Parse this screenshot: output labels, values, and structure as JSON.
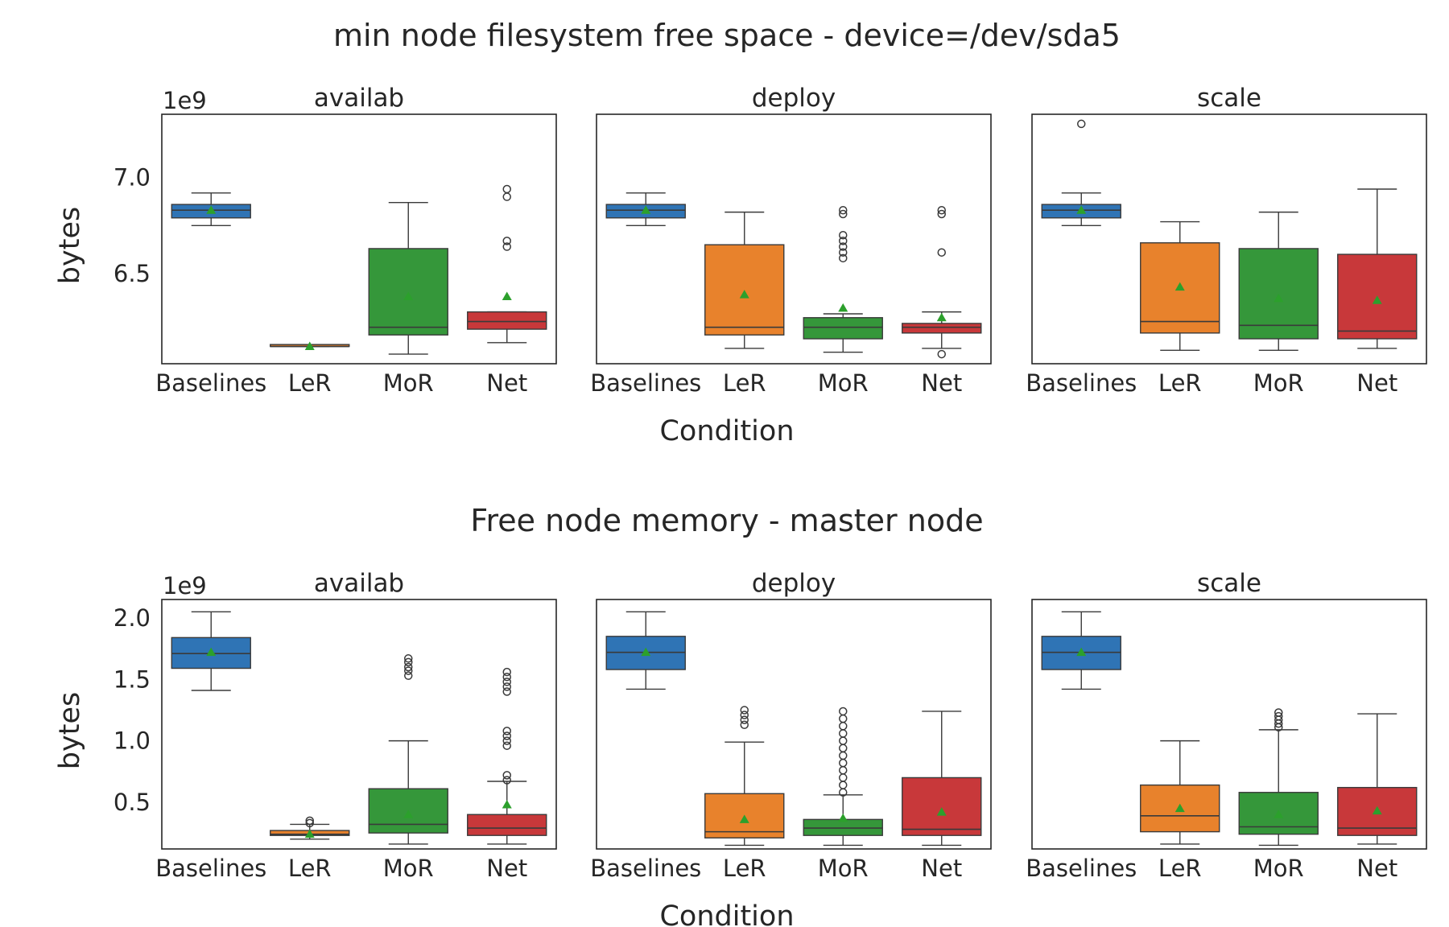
{
  "colors": {
    "Baselines": "#2f74b5",
    "LeR": "#e8822c",
    "MoR": "#35973a",
    "Net": "#c8383a",
    "mean": "#2ca02c"
  },
  "chart_data": [
    {
      "type": "box",
      "title": "min node filesystem free space - device=/dev/sda5",
      "xlabel": "Condition",
      "ylabel": "bytes",
      "offset_label": "1e9",
      "ylim": [
        6.03,
        7.33
      ],
      "yticks": [
        6.5,
        7.0
      ],
      "ytick_labels": [
        "6.5",
        "7.0"
      ],
      "categories": [
        "Baselines",
        "LeR",
        "MoR",
        "Net"
      ],
      "panels": [
        {
          "title": "availab",
          "boxes": [
            {
              "category": "Baselines",
              "whislo": 6.75,
              "q1": 6.79,
              "med": 6.83,
              "q3": 6.86,
              "whishi": 6.92,
              "mean": 6.83,
              "fliers": []
            },
            {
              "category": "LeR",
              "whislo": 6.12,
              "q1": 6.12,
              "med": 6.12,
              "q3": 6.13,
              "whishi": 6.13,
              "mean": 6.12,
              "fliers": []
            },
            {
              "category": "MoR",
              "whislo": 6.08,
              "q1": 6.18,
              "med": 6.22,
              "q3": 6.63,
              "whishi": 6.87,
              "mean": 6.38,
              "fliers": []
            },
            {
              "category": "Net",
              "whislo": 6.14,
              "q1": 6.21,
              "med": 6.25,
              "q3": 6.3,
              "whishi": 6.3,
              "mean": 6.38,
              "fliers": [
                6.64,
                6.67,
                6.9,
                6.94
              ]
            }
          ]
        },
        {
          "title": "deploy",
          "boxes": [
            {
              "category": "Baselines",
              "whislo": 6.75,
              "q1": 6.79,
              "med": 6.83,
              "q3": 6.86,
              "whishi": 6.92,
              "mean": 6.83,
              "fliers": []
            },
            {
              "category": "LeR",
              "whislo": 6.11,
              "q1": 6.18,
              "med": 6.22,
              "q3": 6.65,
              "whishi": 6.82,
              "mean": 6.39,
              "fliers": []
            },
            {
              "category": "MoR",
              "whislo": 6.09,
              "q1": 6.16,
              "med": 6.22,
              "q3": 6.27,
              "whishi": 6.29,
              "mean": 6.32,
              "fliers": [
                6.58,
                6.61,
                6.64,
                6.67,
                6.7,
                6.81,
                6.83
              ]
            },
            {
              "category": "Net",
              "whislo": 6.11,
              "q1": 6.19,
              "med": 6.22,
              "q3": 6.24,
              "whishi": 6.3,
              "mean": 6.27,
              "fliers": [
                6.08,
                6.61,
                6.81,
                6.83
              ]
            }
          ]
        },
        {
          "title": "scale",
          "boxes": [
            {
              "category": "Baselines",
              "whislo": 6.75,
              "q1": 6.79,
              "med": 6.83,
              "q3": 6.86,
              "whishi": 6.92,
              "mean": 6.83,
              "fliers": [
                7.28
              ]
            },
            {
              "category": "LeR",
              "whislo": 6.1,
              "q1": 6.19,
              "med": 6.25,
              "q3": 6.66,
              "whishi": 6.77,
              "mean": 6.43,
              "fliers": []
            },
            {
              "category": "MoR",
              "whislo": 6.1,
              "q1": 6.16,
              "med": 6.23,
              "q3": 6.63,
              "whishi": 6.82,
              "mean": 6.37,
              "fliers": []
            },
            {
              "category": "Net",
              "whislo": 6.11,
              "q1": 6.16,
              "med": 6.2,
              "q3": 6.6,
              "whishi": 6.94,
              "mean": 6.36,
              "fliers": []
            }
          ]
        }
      ]
    },
    {
      "type": "box",
      "title": "Free node memory - master node",
      "xlabel": "Condition",
      "ylabel": "bytes",
      "offset_label": "1e9",
      "ylim": [
        0.12,
        2.15
      ],
      "yticks": [
        0.5,
        1.0,
        1.5,
        2.0
      ],
      "ytick_labels": [
        "0.5",
        "1.0",
        "1.5",
        "2.0"
      ],
      "categories": [
        "Baselines",
        "LeR",
        "MoR",
        "Net"
      ],
      "panels": [
        {
          "title": "availab",
          "boxes": [
            {
              "category": "Baselines",
              "whislo": 1.41,
              "q1": 1.59,
              "med": 1.71,
              "q3": 1.84,
              "whishi": 2.05,
              "mean": 1.72,
              "fliers": []
            },
            {
              "category": "LeR",
              "whislo": 0.2,
              "q1": 0.23,
              "med": 0.24,
              "q3": 0.27,
              "whishi": 0.32,
              "mean": 0.24,
              "fliers": [
                0.33,
                0.35
              ]
            },
            {
              "category": "MoR",
              "whislo": 0.16,
              "q1": 0.25,
              "med": 0.32,
              "q3": 0.61,
              "whishi": 1.0,
              "mean": 0.4,
              "fliers": [
                1.53,
                1.57,
                1.6,
                1.64,
                1.67
              ]
            },
            {
              "category": "Net",
              "whislo": 0.16,
              "q1": 0.23,
              "med": 0.29,
              "q3": 0.4,
              "whishi": 0.67,
              "mean": 0.48,
              "fliers": [
                0.68,
                0.72,
                0.96,
                1.0,
                1.04,
                1.08,
                1.4,
                1.44,
                1.48,
                1.52,
                1.56
              ]
            }
          ]
        },
        {
          "title": "deploy",
          "boxes": [
            {
              "category": "Baselines",
              "whislo": 1.42,
              "q1": 1.58,
              "med": 1.72,
              "q3": 1.85,
              "whishi": 2.05,
              "mean": 1.72,
              "fliers": []
            },
            {
              "category": "LeR",
              "whislo": 0.15,
              "q1": 0.21,
              "med": 0.26,
              "q3": 0.57,
              "whishi": 0.99,
              "mean": 0.36,
              "fliers": [
                1.13,
                1.17,
                1.21,
                1.25
              ]
            },
            {
              "category": "MoR",
              "whislo": 0.15,
              "q1": 0.23,
              "med": 0.29,
              "q3": 0.36,
              "whishi": 0.56,
              "mean": 0.37,
              "fliers": [
                0.58,
                0.64,
                0.7,
                0.76,
                0.82,
                0.88,
                0.94,
                1.0,
                1.06,
                1.12,
                1.18,
                1.24
              ]
            },
            {
              "category": "Net",
              "whislo": 0.15,
              "q1": 0.23,
              "med": 0.28,
              "q3": 0.7,
              "whishi": 1.24,
              "mean": 0.42,
              "fliers": []
            }
          ]
        },
        {
          "title": "scale",
          "boxes": [
            {
              "category": "Baselines",
              "whislo": 1.42,
              "q1": 1.58,
              "med": 1.72,
              "q3": 1.85,
              "whishi": 2.05,
              "mean": 1.72,
              "fliers": []
            },
            {
              "category": "LeR",
              "whislo": 0.16,
              "q1": 0.26,
              "med": 0.39,
              "q3": 0.64,
              "whishi": 1.0,
              "mean": 0.45,
              "fliers": []
            },
            {
              "category": "MoR",
              "whislo": 0.15,
              "q1": 0.24,
              "med": 0.3,
              "q3": 0.58,
              "whishi": 1.09,
              "mean": 0.4,
              "fliers": [
                1.11,
                1.14,
                1.17,
                1.2,
                1.23
              ]
            },
            {
              "category": "Net",
              "whislo": 0.16,
              "q1": 0.23,
              "med": 0.29,
              "q3": 0.62,
              "whishi": 1.22,
              "mean": 0.43,
              "fliers": []
            }
          ]
        }
      ]
    }
  ]
}
